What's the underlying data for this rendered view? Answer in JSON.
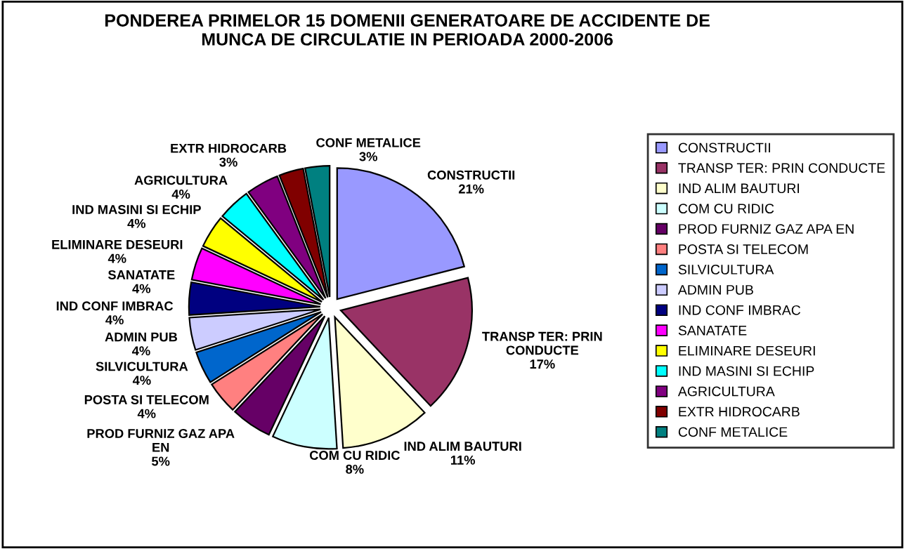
{
  "chart_data": {
    "type": "pie",
    "title": "PONDEREA PRIMELOR 15 DOMENII GENERATOARE DE ACCIDENTE DE\nMUNCA DE CIRCULATIE IN PERIOADA 2000-2006",
    "categories": [
      "CONSTRUCTII",
      "TRANSP TER: PRIN CONDUCTE",
      "IND ALIM BAUTURI",
      "COM CU RIDIC",
      "PROD FURNIZ GAZ APA EN",
      "POSTA SI TELECOM",
      "SILVICULTURA",
      "ADMIN PUB",
      "IND CONF IMBRAC",
      "SANATATE",
      "ELIMINARE DESEURI",
      "IND MASINI SI ECHIP",
      "AGRICULTURA",
      "EXTR HIDROCARB",
      "CONF METALICE"
    ],
    "values": [
      21,
      17,
      11,
      8,
      5,
      4,
      4,
      4,
      4,
      4,
      4,
      4,
      4,
      3,
      3
    ],
    "value_labels": [
      "21%",
      "17%",
      "11%",
      "8%",
      "5%",
      "4%",
      "4%",
      "4%",
      "4%",
      "4%",
      "4%",
      "4%",
      "4%",
      "3%",
      "3%"
    ],
    "colors": [
      "#9999ff",
      "#993366",
      "#ffffcc",
      "#ccffff",
      "#660066",
      "#ff8080",
      "#0066cc",
      "#ccccff",
      "#000080",
      "#ff00ff",
      "#ffff00",
      "#00ffff",
      "#800080",
      "#800000",
      "#008080"
    ],
    "legend": "right"
  }
}
